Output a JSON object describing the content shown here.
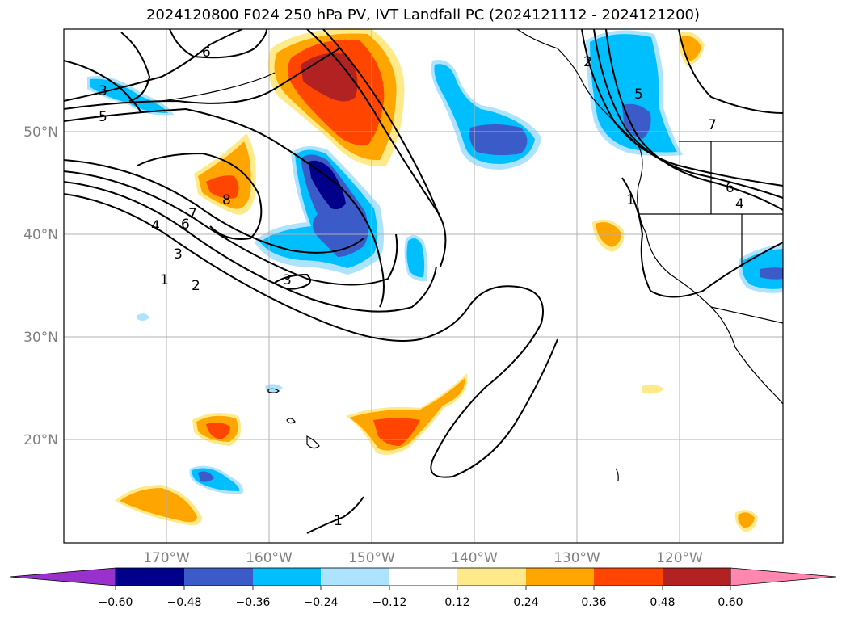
{
  "title": "2024120800 F024 250 hPa PV, IVT Landfall PC (2024121112 - 2024121200)",
  "map": {
    "lon_range": [
      -180,
      -110
    ],
    "lat_range": [
      10,
      60
    ],
    "grid": true,
    "lat_labels": [
      "20°N",
      "30°N",
      "40°N",
      "50°N"
    ],
    "lon_labels": [
      "170°W",
      "160°W",
      "150°W",
      "140°W",
      "130°W",
      "120°W"
    ],
    "pv_contour_labels": [
      "1",
      "2",
      "3",
      "4",
      "5",
      "6",
      "7",
      "8",
      "1",
      "2",
      "3",
      "4",
      "5",
      "6",
      "7",
      "1",
      "3",
      "6"
    ]
  },
  "colorbar": {
    "ticks": [
      "−0.60",
      "−0.48",
      "−0.36",
      "−0.24",
      "−0.12",
      "0.12",
      "0.24",
      "0.36",
      "0.48",
      "0.60"
    ],
    "colors": [
      "#9932cc",
      "#00008b",
      "#3a5bc8",
      "#00bfff",
      "#aee3ff",
      "#ffffff",
      "#ffea8a",
      "#ffa500",
      "#ff4500",
      "#b22222",
      "#ff87b0"
    ],
    "extend": "both"
  },
  "colors": {
    "land": "#000000",
    "grid": "#b0b0b0",
    "contour": "#000000"
  }
}
